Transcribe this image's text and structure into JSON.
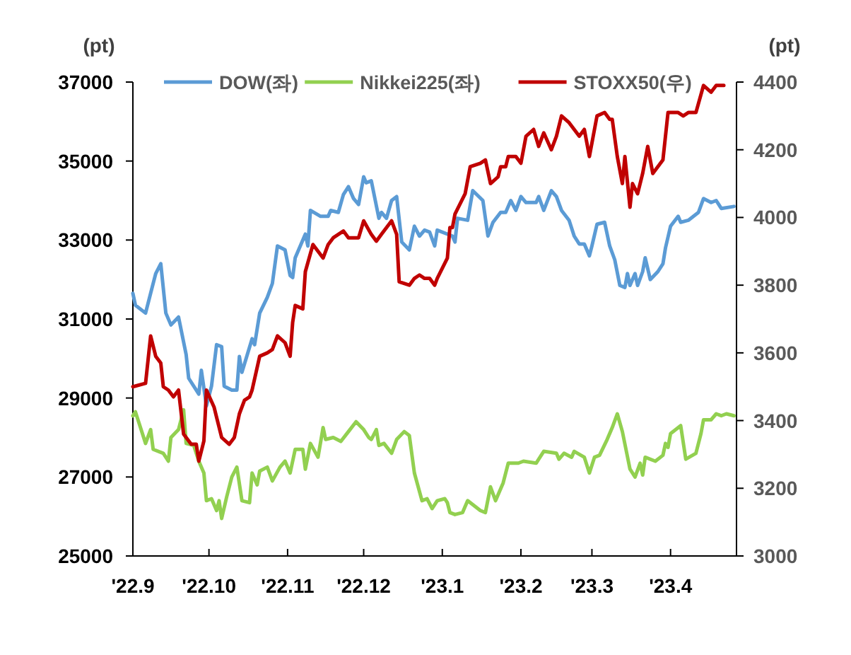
{
  "chart_data": {
    "type": "line",
    "ylabel": "(pt)",
    "y2label": "(pt)",
    "legend": "top",
    "grid": false,
    "marker": "none",
    "line_style": "solid",
    "xlim": [
      "2022-09-01",
      "2023-04-27"
    ],
    "xticks": [
      {
        "value": "2022-09-01",
        "label": "'22.9"
      },
      {
        "value": "2022-10-01",
        "label": "'22.10"
      },
      {
        "value": "2022-11-01",
        "label": "'22.11"
      },
      {
        "value": "2022-12-01",
        "label": "'22.12"
      },
      {
        "value": "2023-01-01",
        "label": "'23.1"
      },
      {
        "value": "2023-02-01",
        "label": "'23.2"
      },
      {
        "value": "2023-03-01",
        "label": "'23.3"
      },
      {
        "value": "2023-04-01",
        "label": "'23.4"
      }
    ],
    "ylim": [
      25000,
      37000
    ],
    "yticks": [
      25000,
      27000,
      29000,
      31000,
      33000,
      35000,
      37000
    ],
    "y2lim": [
      3000,
      4400
    ],
    "y2ticks": [
      3000,
      3200,
      3400,
      3600,
      3800,
      4000,
      4200,
      4400
    ],
    "series": [
      {
        "name": "DOW(좌)",
        "color": "#5b9bd5",
        "x": [
          "2022-09-01",
          "2022-09-02",
          "2022-09-06",
          "2022-09-08",
          "2022-09-10",
          "2022-09-12",
          "2022-09-14",
          "2022-09-16",
          "2022-09-19",
          "2022-09-22",
          "2022-09-23",
          "2022-09-27",
          "2022-09-28",
          "2022-09-30",
          "2022-10-02",
          "2022-10-04",
          "2022-10-06",
          "2022-10-07",
          "2022-10-10",
          "2022-10-12",
          "2022-10-13",
          "2022-10-14",
          "2022-10-18",
          "2022-10-19",
          "2022-10-21",
          "2022-10-24",
          "2022-10-26",
          "2022-10-28",
          "2022-10-31",
          "2022-11-02",
          "2022-11-03",
          "2022-11-04",
          "2022-11-08",
          "2022-11-09",
          "2022-11-10",
          "2022-11-14",
          "2022-11-17",
          "2022-11-18",
          "2022-11-21",
          "2022-11-23",
          "2022-11-25",
          "2022-11-27",
          "2022-11-29",
          "2022-12-01",
          "2022-12-02",
          "2022-12-04",
          "2022-12-07",
          "2022-12-08",
          "2022-12-10",
          "2022-12-12",
          "2022-12-14",
          "2022-12-16",
          "2022-12-19",
          "2022-12-21",
          "2022-12-23",
          "2022-12-25",
          "2022-12-27",
          "2022-12-29",
          "2022-12-30",
          "2023-01-05",
          "2023-01-06",
          "2023-01-07",
          "2023-01-11",
          "2023-01-13",
          "2023-01-17",
          "2023-01-19",
          "2023-01-21",
          "2023-01-24",
          "2023-01-26",
          "2023-01-28",
          "2023-01-30",
          "2023-02-01",
          "2023-02-03",
          "2023-02-07",
          "2023-02-08",
          "2023-02-10",
          "2023-02-13",
          "2023-02-15",
          "2023-02-17",
          "2023-02-20",
          "2023-02-22",
          "2023-02-24",
          "2023-02-26",
          "2023-02-28",
          "2023-03-01",
          "2023-03-03",
          "2023-03-06",
          "2023-03-08",
          "2023-03-10",
          "2023-03-12",
          "2023-03-14",
          "2023-03-15",
          "2023-03-16",
          "2023-03-18",
          "2023-03-19",
          "2023-03-21",
          "2023-03-22",
          "2023-03-24",
          "2023-03-27",
          "2023-03-29",
          "2023-03-30",
          "2023-04-01",
          "2023-04-04",
          "2023-04-05",
          "2023-04-08",
          "2023-04-12",
          "2023-04-14",
          "2023-04-17",
          "2023-04-19",
          "2023-04-21",
          "2023-04-26"
        ],
        "values": [
          31650,
          31350,
          31150,
          31650,
          32150,
          32400,
          31150,
          30850,
          31050,
          30100,
          29500,
          29100,
          29700,
          28800,
          29300,
          30350,
          30300,
          29300,
          29200,
          29200,
          30050,
          29650,
          30500,
          30350,
          31150,
          31550,
          31900,
          32850,
          32750,
          32100,
          32050,
          32550,
          33150,
          32850,
          33750,
          33600,
          33600,
          33750,
          33700,
          34150,
          34350,
          34050,
          33900,
          34600,
          34450,
          34500,
          33550,
          33700,
          33550,
          34000,
          34100,
          32950,
          32750,
          33350,
          33100,
          33250,
          33200,
          32850,
          33250,
          33100,
          32950,
          33550,
          33500,
          34250,
          34000,
          33100,
          33450,
          33700,
          33700,
          34000,
          33750,
          34100,
          33950,
          33950,
          34100,
          33750,
          34250,
          34100,
          33750,
          33500,
          33100,
          32900,
          32900,
          32600,
          32850,
          33400,
          33450,
          32850,
          32500,
          31850,
          31800,
          32150,
          31850,
          32150,
          31850,
          32200,
          32550,
          32000,
          32200,
          32400,
          32800,
          33350,
          33600,
          33450,
          33500,
          33700,
          34050,
          33950,
          34000,
          33800,
          33850
        ]
      },
      {
        "name": "Nikkei225(좌)",
        "color": "#92d050",
        "x": [
          "2022-09-01",
          "2022-09-02",
          "2022-09-04",
          "2022-09-06",
          "2022-09-08",
          "2022-09-09",
          "2022-09-13",
          "2022-09-15",
          "2022-09-16",
          "2022-09-19",
          "2022-09-21",
          "2022-09-22",
          "2022-09-25",
          "2022-09-27",
          "2022-09-29",
          "2022-09-30",
          "2022-10-02",
          "2022-10-04",
          "2022-10-05",
          "2022-10-06",
          "2022-10-08",
          "2022-10-10",
          "2022-10-12",
          "2022-10-14",
          "2022-10-17",
          "2022-10-18",
          "2022-10-20",
          "2022-10-21",
          "2022-10-24",
          "2022-10-26",
          "2022-10-29",
          "2022-10-31",
          "2022-11-02",
          "2022-11-04",
          "2022-11-07",
          "2022-11-08",
          "2022-11-10",
          "2022-11-13",
          "2022-11-15",
          "2022-11-16",
          "2022-11-19",
          "2022-11-22",
          "2022-11-25",
          "2022-11-28",
          "2022-12-01",
          "2022-12-03",
          "2022-12-04",
          "2022-12-06",
          "2022-12-07",
          "2022-12-09",
          "2022-12-12",
          "2022-12-14",
          "2022-12-17",
          "2022-12-19",
          "2022-12-21",
          "2022-12-24",
          "2022-12-26",
          "2022-12-28",
          "2022-12-30",
          "2023-01-02",
          "2023-01-03",
          "2023-01-04",
          "2023-01-06",
          "2023-01-09",
          "2023-01-11",
          "2023-01-16",
          "2023-01-18",
          "2023-01-20",
          "2023-01-22",
          "2023-01-25",
          "2023-01-27",
          "2023-01-31",
          "2023-02-02",
          "2023-02-07",
          "2023-02-10",
          "2023-02-15",
          "2023-02-16",
          "2023-02-18",
          "2023-02-21",
          "2023-02-22",
          "2023-02-26",
          "2023-02-28",
          "2023-03-02",
          "2023-03-04",
          "2023-03-07",
          "2023-03-09",
          "2023-03-11",
          "2023-03-13",
          "2023-03-16",
          "2023-03-18",
          "2023-03-20",
          "2023-03-21",
          "2023-03-22",
          "2023-03-26",
          "2023-03-29",
          "2023-03-30",
          "2023-03-31",
          "2023-04-01",
          "2023-04-05",
          "2023-04-07",
          "2023-04-11",
          "2023-04-13",
          "2023-04-14",
          "2023-04-17",
          "2023-04-19",
          "2023-04-21",
          "2023-04-23",
          "2023-04-26"
        ],
        "values": [
          28550,
          28650,
          28250,
          27850,
          28200,
          27700,
          27600,
          27400,
          28000,
          28200,
          28700,
          27850,
          27800,
          27400,
          27100,
          26400,
          26450,
          26150,
          26400,
          25950,
          26500,
          27000,
          27250,
          26400,
          26350,
          27100,
          26800,
          27150,
          27250,
          26900,
          27250,
          27400,
          27100,
          27700,
          27700,
          27200,
          27850,
          27500,
          28250,
          27950,
          28000,
          27900,
          28150,
          28400,
          28200,
          28000,
          27950,
          28200,
          27800,
          27850,
          27600,
          27950,
          28150,
          28050,
          27100,
          26400,
          26450,
          26200,
          26400,
          26450,
          26350,
          26100,
          26050,
          26100,
          26400,
          26150,
          26100,
          26750,
          26400,
          26850,
          27350,
          27350,
          27400,
          27350,
          27650,
          27600,
          27450,
          27600,
          27500,
          27650,
          27500,
          27100,
          27500,
          27550,
          27950,
          28250,
          28600,
          28150,
          27200,
          27000,
          27350,
          27050,
          27500,
          27400,
          27550,
          27850,
          27750,
          28100,
          28300,
          27450,
          27600,
          28100,
          28450,
          28450,
          28600,
          28550,
          28600,
          28550
        ]
      },
      {
        "name": "STOXX50(우)",
        "color": "#c00000",
        "axis": "y2",
        "x": [
          "2022-09-01",
          "2022-09-06",
          "2022-09-08",
          "2022-09-10",
          "2022-09-12",
          "2022-09-13",
          "2022-09-15",
          "2022-09-17",
          "2022-09-19",
          "2022-09-21",
          "2022-09-24",
          "2022-09-26",
          "2022-09-27",
          "2022-09-29",
          "2022-09-30",
          "2022-10-03",
          "2022-10-04",
          "2022-10-06",
          "2022-10-09",
          "2022-10-11",
          "2022-10-13",
          "2022-10-15",
          "2022-10-17",
          "2022-10-18",
          "2022-10-21",
          "2022-10-24",
          "2022-10-26",
          "2022-10-28",
          "2022-10-31",
          "2022-11-02",
          "2022-11-03",
          "2022-11-04",
          "2022-11-07",
          "2022-11-08",
          "2022-11-11",
          "2022-11-15",
          "2022-11-17",
          "2022-11-19",
          "2022-11-23",
          "2022-11-25",
          "2022-11-29",
          "2022-12-01",
          "2022-12-04",
          "2022-12-06",
          "2022-12-08",
          "2022-12-12",
          "2022-12-14",
          "2022-12-15",
          "2022-12-19",
          "2022-12-21",
          "2022-12-23",
          "2022-12-25",
          "2022-12-27",
          "2022-12-29",
          "2022-12-30",
          "2023-01-03",
          "2023-01-04",
          "2023-01-05",
          "2023-01-06",
          "2023-01-10",
          "2023-01-12",
          "2023-01-16",
          "2023-01-18",
          "2023-01-20",
          "2023-01-23",
          "2023-01-24",
          "2023-01-26",
          "2023-01-27",
          "2023-01-30",
          "2023-02-01",
          "2023-02-03",
          "2023-02-06",
          "2023-02-08",
          "2023-02-10",
          "2023-02-13",
          "2023-02-15",
          "2023-02-17",
          "2023-02-20",
          "2023-02-22",
          "2023-02-24",
          "2023-02-26",
          "2023-02-28",
          "2023-03-03",
          "2023-03-06",
          "2023-03-08",
          "2023-03-09",
          "2023-03-11",
          "2023-03-13",
          "2023-03-14",
          "2023-03-16",
          "2023-03-17",
          "2023-03-19",
          "2023-03-21",
          "2023-03-23",
          "2023-03-25",
          "2023-03-29",
          "2023-03-31",
          "2023-04-04",
          "2023-04-06",
          "2023-04-08",
          "2023-04-11",
          "2023-04-14",
          "2023-04-17",
          "2023-04-19",
          "2023-04-21",
          "2023-04-22"
        ],
        "values": [
          3500,
          3510,
          3650,
          3590,
          3570,
          3500,
          3490,
          3470,
          3490,
          3360,
          3330,
          3330,
          3280,
          3340,
          3490,
          3440,
          3410,
          3350,
          3330,
          3350,
          3420,
          3460,
          3470,
          3490,
          3590,
          3600,
          3610,
          3650,
          3630,
          3590,
          3690,
          3740,
          3730,
          3840,
          3920,
          3880,
          3920,
          3940,
          3960,
          3940,
          3940,
          3990,
          3950,
          3930,
          3950,
          3990,
          3950,
          3810,
          3800,
          3820,
          3830,
          3820,
          3820,
          3800,
          3820,
          3880,
          3970,
          3970,
          4010,
          4070,
          4150,
          4160,
          4170,
          4100,
          4120,
          4150,
          4150,
          4180,
          4180,
          4160,
          4240,
          4260,
          4210,
          4250,
          4200,
          4240,
          4300,
          4280,
          4260,
          4240,
          4260,
          4180,
          4300,
          4310,
          4290,
          4290,
          4180,
          4100,
          4180,
          4030,
          4100,
          4070,
          4130,
          4210,
          4130,
          4170,
          4310,
          4310,
          4300,
          4310,
          4310,
          4390,
          4370,
          4390,
          4390,
          4390
        ]
      }
    ]
  }
}
